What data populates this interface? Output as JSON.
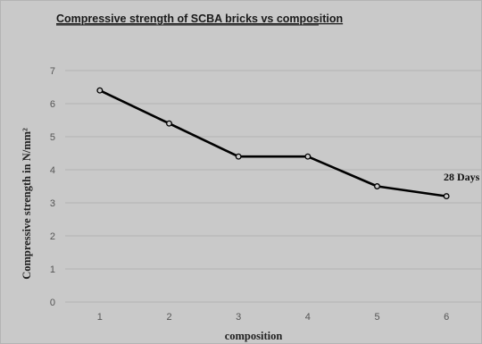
{
  "chart_data": {
    "type": "line",
    "title": "Compressive strength of SCBA bricks vs composition",
    "xlabel": "composition",
    "ylabel": "Compressive strength  in N/mm²",
    "categories": [
      "1",
      "2",
      "3",
      "4",
      "5",
      "6"
    ],
    "y_ticks": [
      "0",
      "1",
      "2",
      "3",
      "4",
      "5",
      "6",
      "7"
    ],
    "ylim": [
      0,
      7
    ],
    "grid": true,
    "series": [
      {
        "name": "28 Days",
        "values": [
          6.4,
          5.4,
          4.4,
          4.4,
          3.5,
          3.2
        ]
      }
    ],
    "annotation": "28 Days",
    "colors": {
      "line": "#000000",
      "marker_fill": "#c9c9c9",
      "grid": "#b3b3b3",
      "background": "#c9c9c9"
    }
  }
}
